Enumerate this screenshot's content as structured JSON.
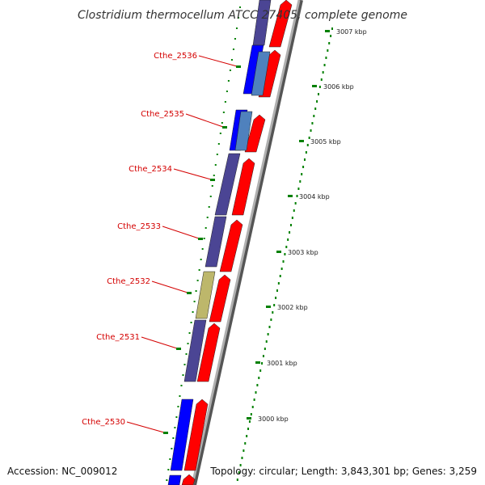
{
  "title": "Clostridium thermocellum ATCC 27405, complete genome",
  "footer": {
    "accession": "Accession: NC_009012",
    "topology": "Topology: circular; Length: 3,843,301 bp; Genes: 3,259"
  },
  "gene_labels": [
    "Cthe_2536",
    "Cthe_2535",
    "Cthe_2534",
    "Cthe_2533",
    "Cthe_2532",
    "Cthe_2531",
    "Cthe_2530"
  ],
  "kbp_ticks": [
    "3007 kbp",
    "3006 kbp",
    "3005 kbp",
    "3004 kbp",
    "3003 kbp",
    "3002 kbp",
    "3001 kbp",
    "3000 kbp"
  ],
  "colors": {
    "cds_forward": "#ff0000",
    "cds_purple": "#4b4594",
    "cds_blue": "#0000ff",
    "cds_light_blue": "#4f81bd",
    "cds_khaki": "#bdb76b",
    "tick_green": "#008000",
    "label_red": "#d40000",
    "backbone": "#808080"
  }
}
